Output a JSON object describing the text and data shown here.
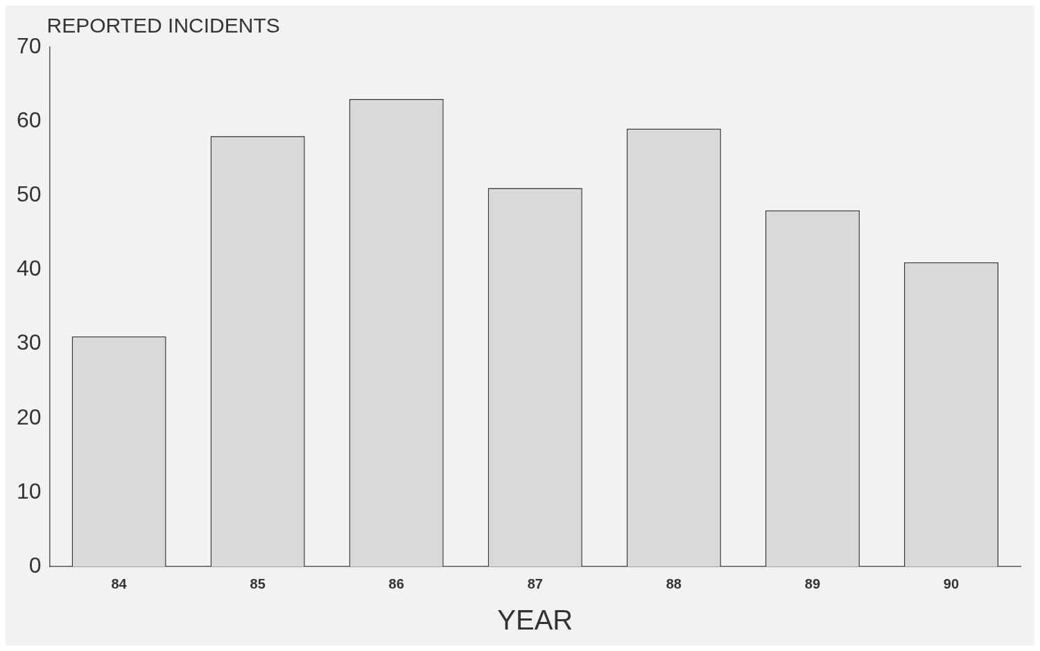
{
  "chart_data": {
    "type": "bar",
    "ylabel": "REPORTED INCIDENTS",
    "xlabel": "YEAR",
    "categories": [
      "84",
      "85",
      "86",
      "87",
      "88",
      "89",
      "90"
    ],
    "values": [
      31,
      58,
      63,
      51,
      59,
      48,
      41
    ],
    "color": "#d9d9d9",
    "ylim": [
      0,
      70
    ],
    "yticks": [
      0,
      10,
      20,
      30,
      40,
      50,
      60,
      70
    ],
    "grid": false
  }
}
